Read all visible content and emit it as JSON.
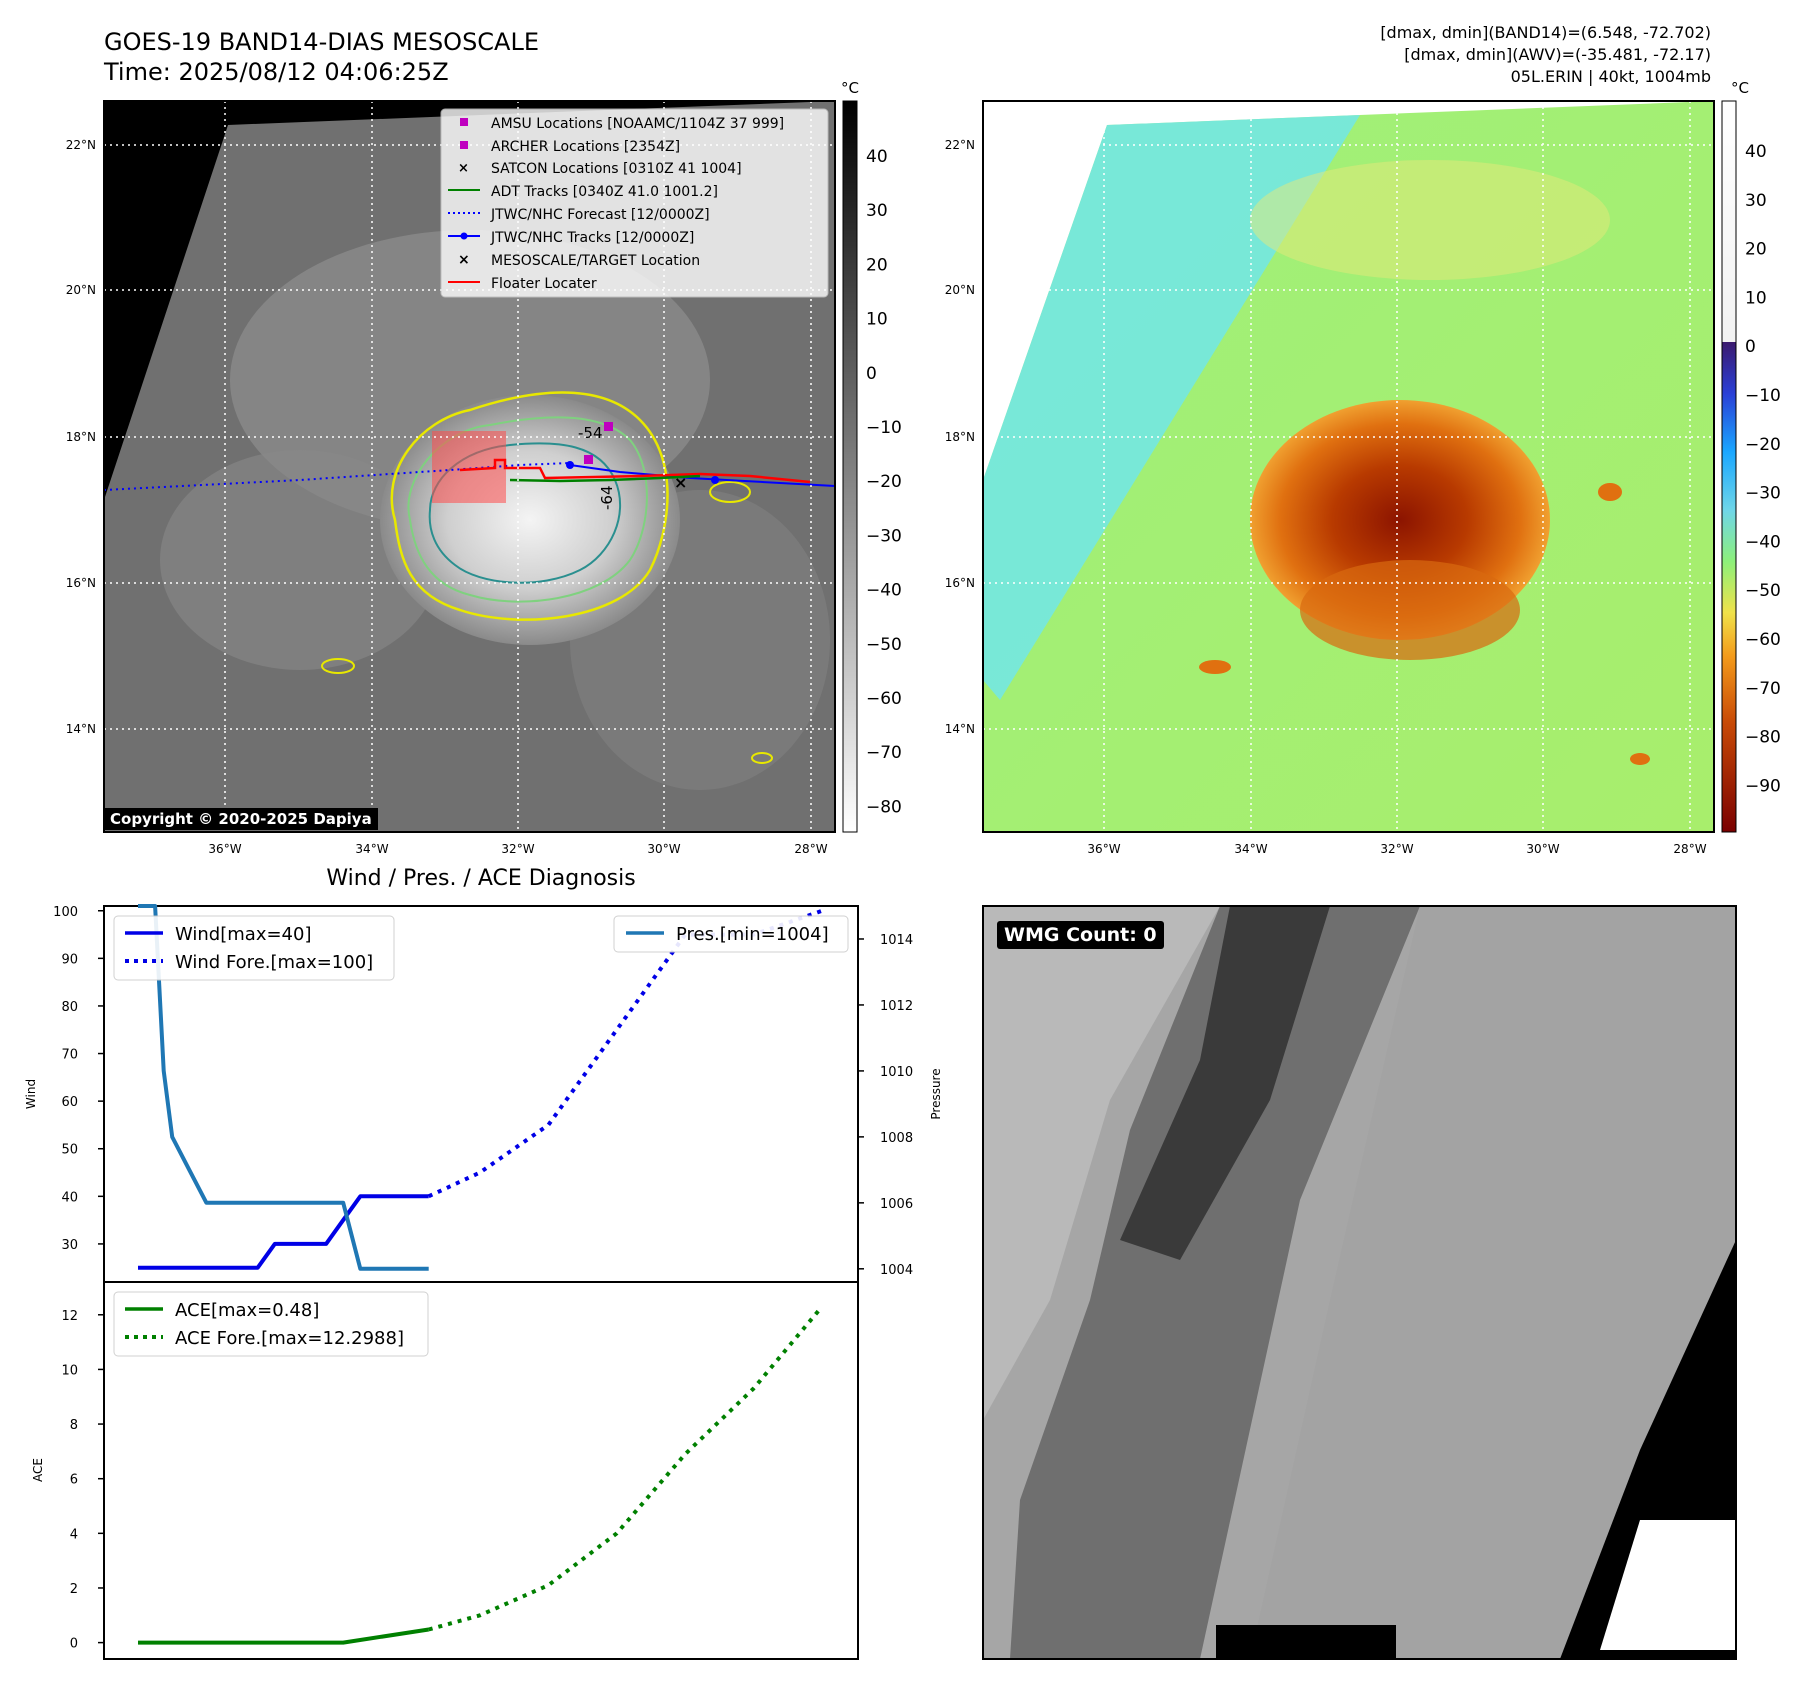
{
  "header": {
    "title_line1": "GOES-19 BAND14-DIAS MESOSCALE",
    "title_line2": "Time: 2025/08/12 04:06:25Z",
    "info_line1": "[dmax, dmin](BAND14)=(6.548, -72.702)",
    "info_line2": "[dmax, dmin](AWV)=(-35.481, -72.17)",
    "info_line3": "05L.ERIN | 40kt, 1004mb"
  },
  "map": {
    "lat_labels": [
      "22°N",
      "20°N",
      "18°N",
      "16°N",
      "14°N"
    ],
    "lon_labels": [
      "36°W",
      "34°W",
      "32°W",
      "30°W",
      "28°W"
    ],
    "copyright": "Copyright © 2020-2025 Dapiya",
    "contour_labels": [
      "-54",
      "-64"
    ],
    "legend": [
      {
        "label": "AMSU Locations [NOAAMC/1104Z 37 999]",
        "color": "#bf00bf",
        "marker": "square"
      },
      {
        "label": "ARCHER Locations [2354Z]",
        "color": "#bf00bf",
        "marker": "square"
      },
      {
        "label": "SATCON Locations [0310Z 41 1004]",
        "color": "#17becf",
        "marker": "x"
      },
      {
        "label": "ADT Tracks [0340Z 41.0 1001.2]",
        "color": "#008000",
        "marker": "line"
      },
      {
        "label": "JTWC/NHC Forecast [12/0000Z]",
        "color": "#0000ff",
        "marker": "dotted"
      },
      {
        "label": "JTWC/NHC Tracks [12/0000Z]",
        "color": "#0000ff",
        "marker": "line-dot"
      },
      {
        "label": "MESOSCALE/TARGET Location",
        "color": "#ff0000",
        "marker": "x"
      },
      {
        "label": "Floater Locater",
        "color": "#ff0000",
        "marker": "line"
      }
    ],
    "colorbar_gray": {
      "unit": "°C",
      "ticks": [
        "40",
        "30",
        "20",
        "10",
        "0",
        "−10",
        "−20",
        "−30",
        "−40",
        "−50",
        "−60",
        "−70",
        "−80"
      ]
    },
    "colorbar_color": {
      "unit": "°C",
      "ticks": [
        "40",
        "30",
        "20",
        "10",
        "0",
        "−10",
        "−20",
        "−30",
        "−40",
        "−50",
        "−60",
        "−70",
        "−80",
        "−90"
      ]
    }
  },
  "chart_data": [
    {
      "type": "line",
      "title": "Wind / Pres. / ACE Diagnosis",
      "ylabel": "Wind",
      "y2label": "Pressure",
      "ylim": [
        22,
        101
      ],
      "y2lim": [
        1003.6,
        1015.0
      ],
      "yticks": [
        "100",
        "90",
        "80",
        "70",
        "60",
        "50",
        "40",
        "30"
      ],
      "y2ticks": [
        "1014",
        "1012",
        "1010",
        "1008",
        "1006",
        "1004"
      ],
      "series": [
        {
          "name": "Wind[max=40]",
          "color": "#0000e6",
          "style": "solid",
          "x": [
            0,
            1,
            2,
            3,
            4,
            5,
            6,
            7,
            8,
            9,
            10,
            11,
            12,
            13,
            14,
            15,
            16,
            17
          ],
          "values": [
            25,
            25,
            25,
            25,
            25,
            25,
            25,
            25,
            30,
            30,
            30,
            30,
            35,
            40,
            40,
            40,
            40,
            40
          ]
        },
        {
          "name": "Wind Fore.[max=100]",
          "color": "#0000e6",
          "style": "dotted",
          "x": [
            17,
            20,
            24,
            28,
            32,
            36,
            40
          ],
          "values": [
            40,
            45,
            55,
            75,
            95,
            95,
            100
          ]
        },
        {
          "name": "Pres.[min=1004]",
          "color": "#1f77b4",
          "style": "solid",
          "axis": "right",
          "x": [
            0,
            1,
            1.5,
            2,
            3,
            4,
            5,
            6,
            7,
            8,
            9,
            10,
            11,
            12,
            13,
            17
          ],
          "values": [
            1015,
            1015,
            1010,
            1008,
            1007,
            1006,
            1006,
            1006,
            1006,
            1006,
            1006,
            1006,
            1006,
            1006,
            1004,
            1004
          ]
        }
      ]
    },
    {
      "type": "line",
      "ylabel": "ACE",
      "ylim": [
        -0.6,
        13.2
      ],
      "yticks": [
        "12",
        "10",
        "8",
        "6",
        "4",
        "2",
        "0"
      ],
      "series": [
        {
          "name": "ACE[max=0.48]",
          "color": "#008000",
          "style": "solid",
          "x": [
            0,
            12,
            17
          ],
          "values": [
            0,
            0,
            0.48
          ]
        },
        {
          "name": "ACE Fore.[max=12.2988]",
          "color": "#008000",
          "style": "dotted",
          "x": [
            17,
            20,
            24,
            28,
            32,
            36,
            40
          ],
          "values": [
            0.48,
            1.0,
            2.1,
            4.0,
            6.9,
            9.3,
            12.3
          ]
        }
      ]
    }
  ],
  "wmg": {
    "label": "WMG Count: 0"
  }
}
